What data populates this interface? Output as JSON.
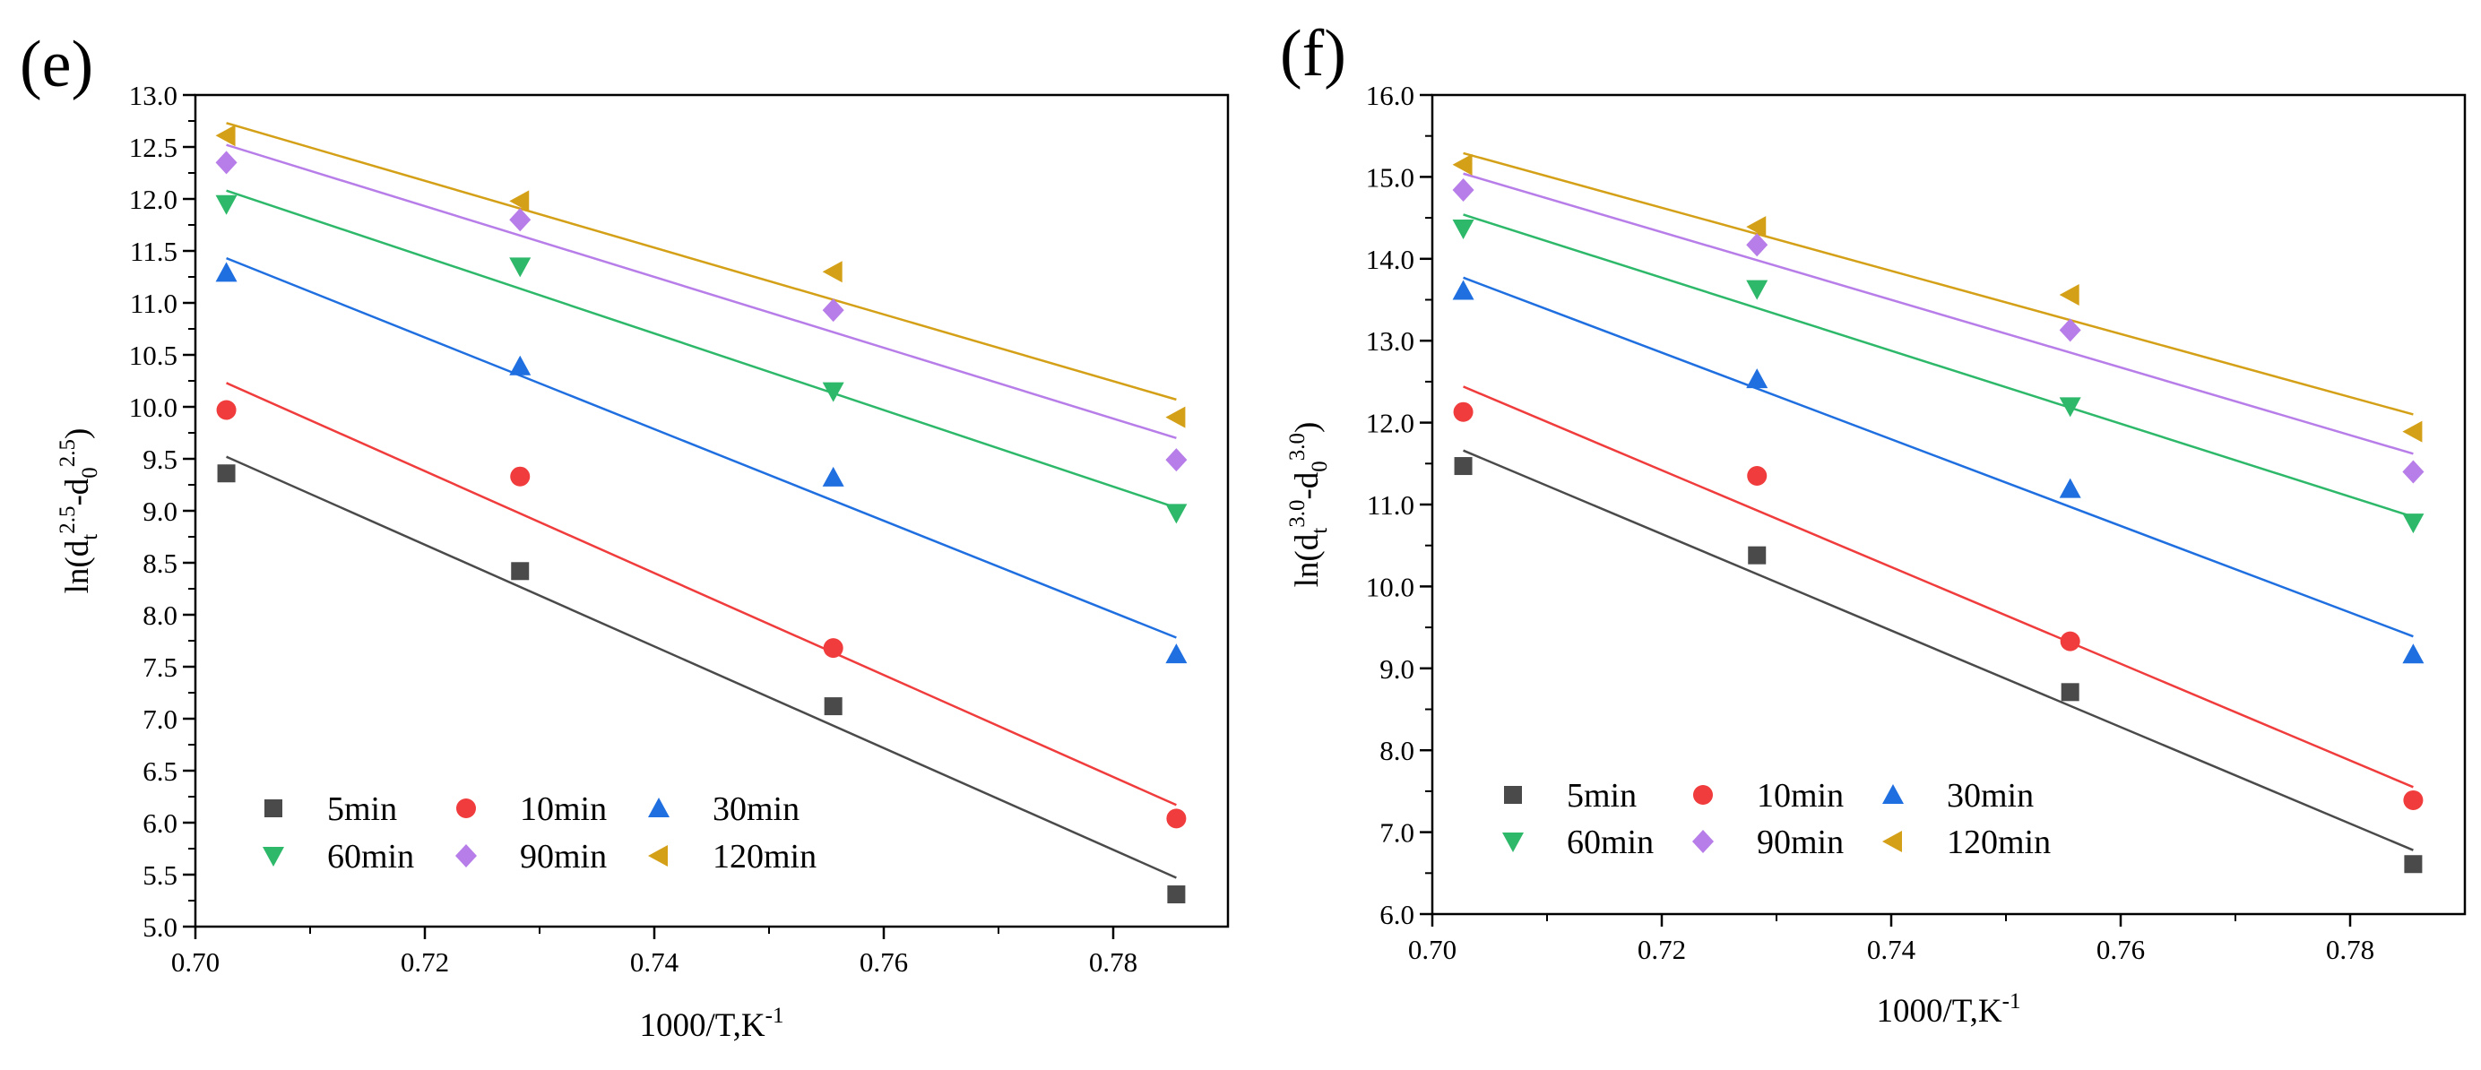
{
  "chart_data": [
    {
      "type": "scatter",
      "panel_label": "(e)",
      "x_axis": {
        "title": "1000/T,K",
        "title_sup": "-1",
        "range": [
          0.7,
          0.79
        ],
        "ticks": [
          0.7,
          0.72,
          0.74,
          0.76,
          0.78
        ],
        "tick_labels": [
          "0.70",
          "0.72",
          "0.74",
          "0.76",
          "0.78"
        ]
      },
      "y_axis": {
        "title_parts": [
          "ln(d",
          "t",
          "2.5",
          "-d",
          "0",
          "2.5",
          ")"
        ],
        "range": [
          5.0,
          13.0
        ],
        "ticks": [
          5.0,
          5.5,
          6.0,
          6.5,
          7.0,
          7.5,
          8.0,
          8.5,
          9.0,
          9.5,
          10.0,
          10.5,
          11.0,
          11.5,
          12.0,
          12.5,
          13.0
        ],
        "tick_labels": [
          "5.0",
          "5.5",
          "6.0",
          "6.5",
          "7.0",
          "7.5",
          "8.0",
          "8.5",
          "9.0",
          "9.5",
          "10.0",
          "10.5",
          "11.0",
          "11.5",
          "12.0",
          "12.5",
          "13.0"
        ]
      },
      "x": [
        0.7027,
        0.7283,
        0.7556,
        0.7855
      ],
      "fit_x_range": [
        0.7027,
        0.7855
      ],
      "series": [
        {
          "name": "5min",
          "marker": "square",
          "color": "#4a4a4a",
          "values": [
            9.36,
            8.42,
            7.12,
            5.31
          ],
          "fit": [
            9.52,
            5.47
          ]
        },
        {
          "name": "10min",
          "marker": "circle",
          "color": "#f03c3c",
          "values": [
            9.97,
            9.33,
            7.68,
            6.04
          ],
          "fit": [
            10.23,
            6.17
          ]
        },
        {
          "name": "30min",
          "marker": "triangle-up",
          "color": "#1f6fe0",
          "values": [
            11.29,
            10.39,
            9.32,
            7.62
          ],
          "fit": [
            11.43,
            7.78
          ]
        },
        {
          "name": "60min",
          "marker": "triangle-down",
          "color": "#2db86a",
          "values": [
            11.95,
            11.35,
            10.15,
            8.98
          ],
          "fit": [
            12.08,
            9.03
          ]
        },
        {
          "name": "90min",
          "marker": "diamond",
          "color": "#b77de8",
          "values": [
            12.35,
            11.8,
            10.93,
            9.49
          ],
          "fit": [
            12.52,
            9.7
          ]
        },
        {
          "name": "120min",
          "marker": "triangle-left",
          "color": "#d4a017",
          "values": [
            12.61,
            11.98,
            11.3,
            9.9
          ],
          "fit": [
            12.73,
            10.07
          ]
        }
      ]
    },
    {
      "type": "scatter",
      "panel_label": "(f)",
      "x_axis": {
        "title": "1000/T,K",
        "title_sup": "-1",
        "range": [
          0.7,
          0.79
        ],
        "ticks": [
          0.7,
          0.72,
          0.74,
          0.76,
          0.78
        ],
        "tick_labels": [
          "0.70",
          "0.72",
          "0.74",
          "0.76",
          "0.78"
        ]
      },
      "y_axis": {
        "title_parts": [
          "ln(d",
          "t",
          "3.0",
          "-d",
          "0",
          "3.0",
          ")"
        ],
        "range": [
          6.0,
          16.0
        ],
        "ticks": [
          6.0,
          7.0,
          8.0,
          9.0,
          10.0,
          11.0,
          12.0,
          13.0,
          14.0,
          15.0,
          16.0
        ],
        "tick_labels": [
          "6.0",
          "7.0",
          "8.0",
          "9.0",
          "10.0",
          "11.0",
          "12.0",
          "13.0",
          "14.0",
          "15.0",
          "16.0"
        ]
      },
      "x": [
        0.7027,
        0.7283,
        0.7556,
        0.7855
      ],
      "fit_x_range": [
        0.7027,
        0.7855
      ],
      "series": [
        {
          "name": "5min",
          "marker": "square",
          "color": "#4a4a4a",
          "values": [
            11.47,
            10.38,
            8.71,
            6.61
          ],
          "fit": [
            11.66,
            6.78
          ]
        },
        {
          "name": "10min",
          "marker": "circle",
          "color": "#f03c3c",
          "values": [
            12.13,
            11.35,
            9.33,
            7.39
          ],
          "fit": [
            12.44,
            7.55
          ]
        },
        {
          "name": "30min",
          "marker": "triangle-up",
          "color": "#1f6fe0",
          "values": [
            13.61,
            12.53,
            11.19,
            9.17
          ],
          "fit": [
            13.77,
            9.39
          ]
        },
        {
          "name": "60min",
          "marker": "triangle-down",
          "color": "#2db86a",
          "values": [
            14.37,
            13.63,
            12.2,
            10.78
          ],
          "fit": [
            14.54,
            10.85
          ]
        },
        {
          "name": "90min",
          "marker": "diamond",
          "color": "#b77de8",
          "values": [
            14.84,
            14.17,
            13.13,
            11.4
          ],
          "fit": [
            15.04,
            11.62
          ]
        },
        {
          "name": "120min",
          "marker": "triangle-left",
          "color": "#d4a017",
          "values": [
            15.15,
            14.39,
            13.56,
            11.89
          ],
          "fit": [
            15.29,
            12.1
          ]
        }
      ]
    }
  ]
}
